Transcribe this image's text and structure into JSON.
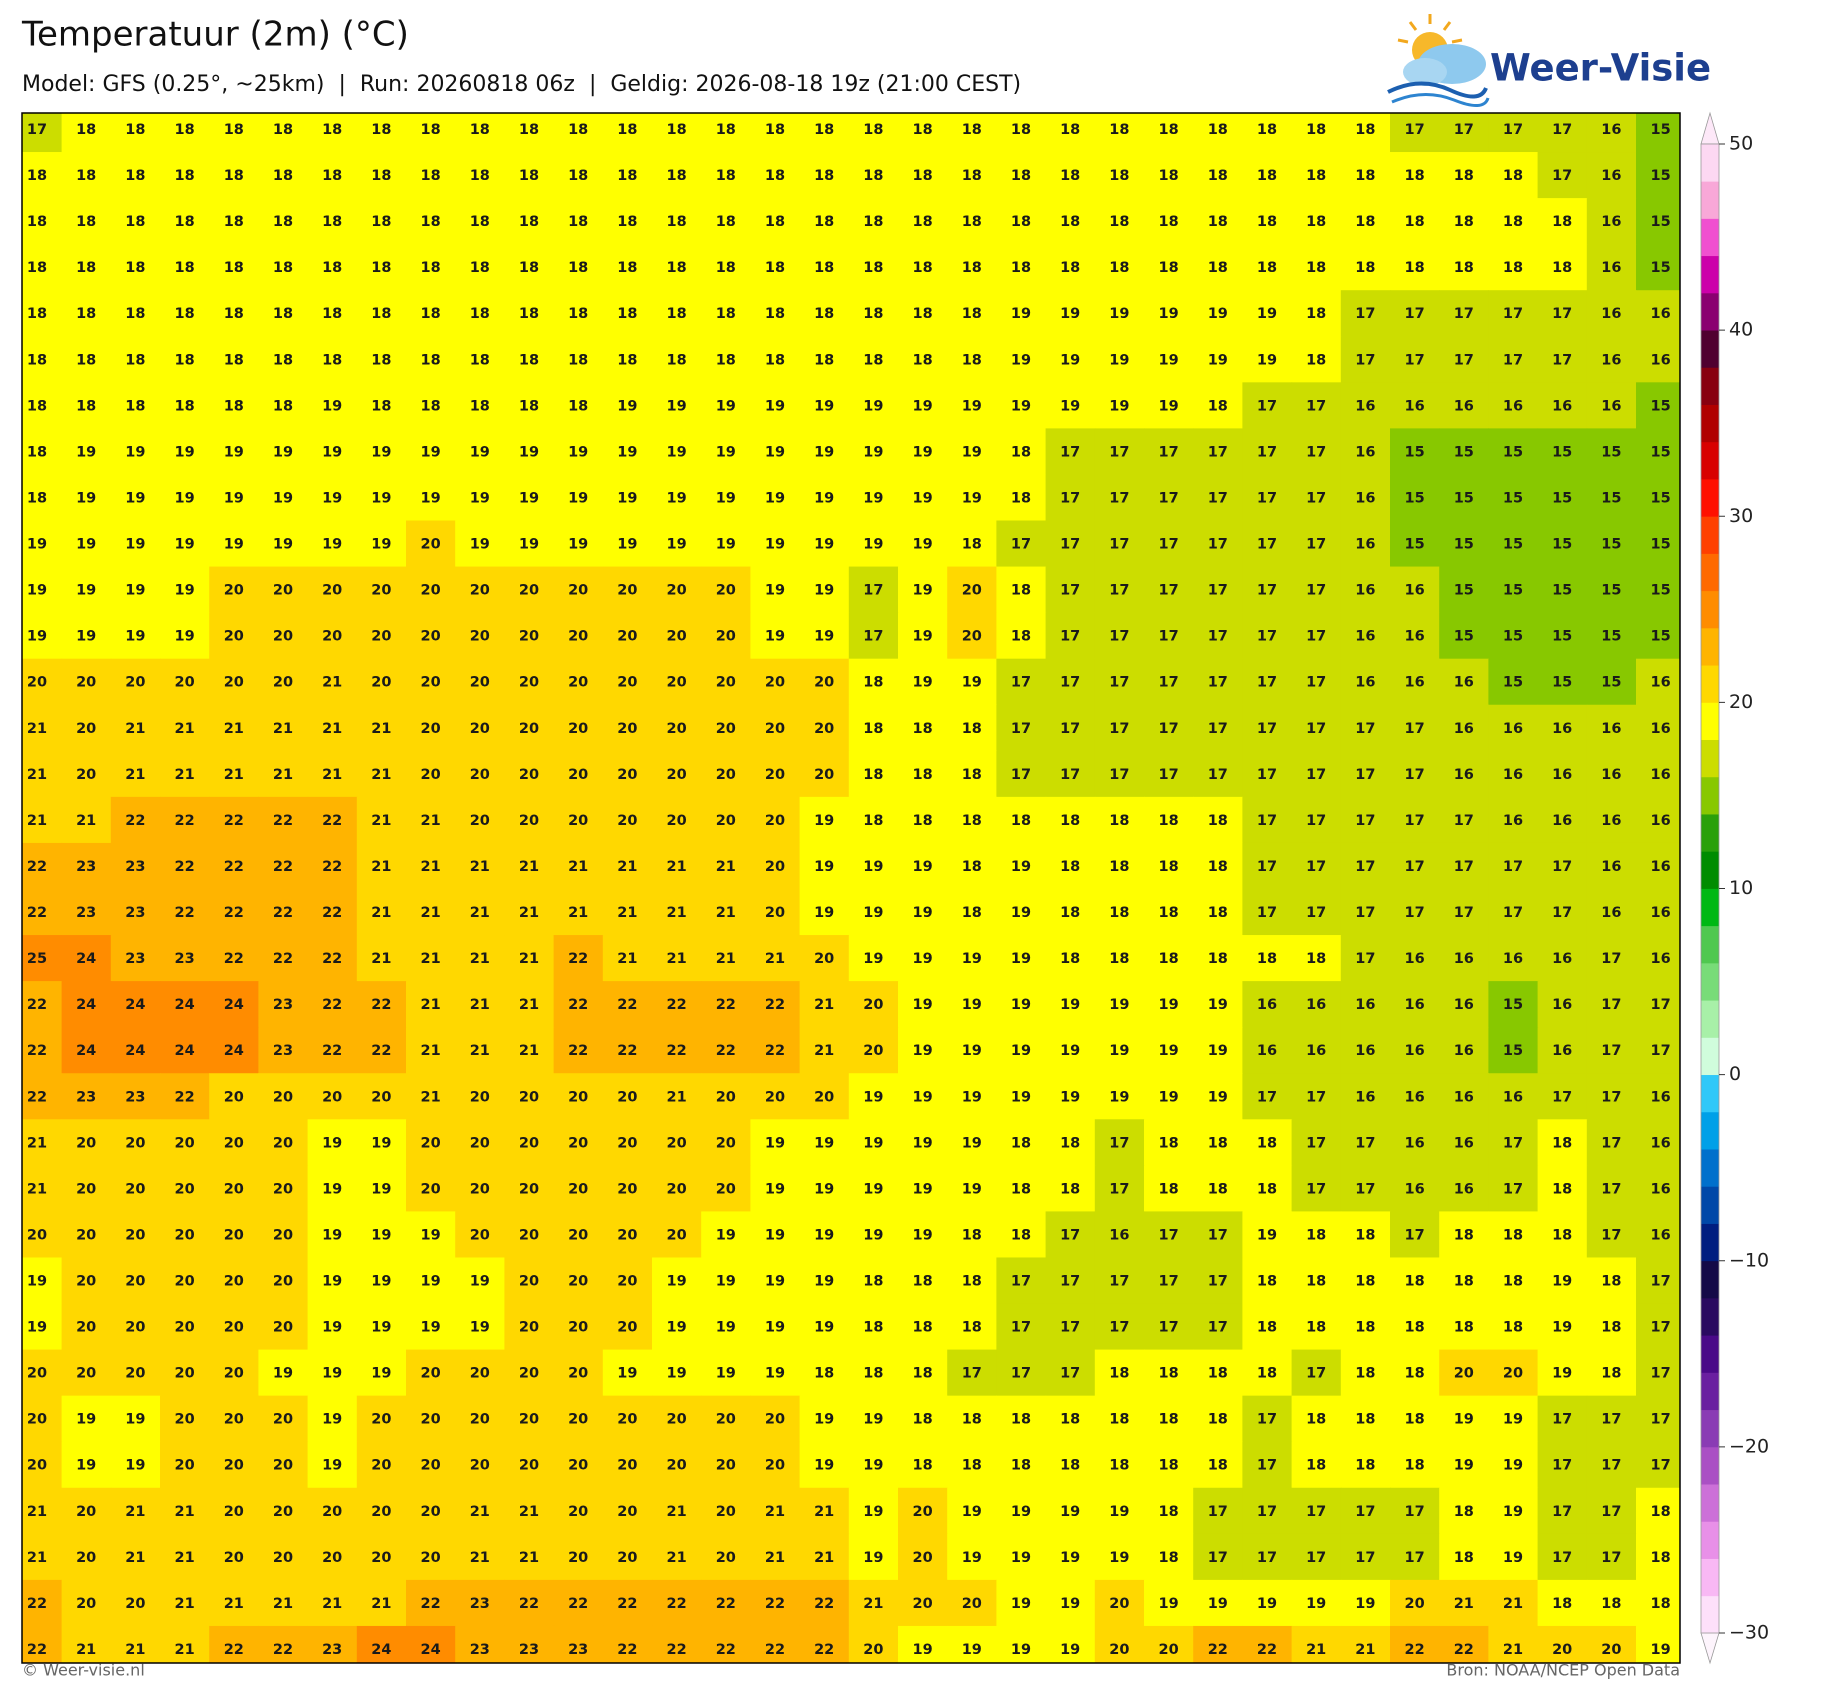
{
  "header": {
    "title": "Temperatuur (2m) (°C)",
    "subtitle": "Model: GFS (0.25°, ~25km)  |  Run: 20260818 06z  |  Geldig: 2026-08-18 19z (21:00 CEST)",
    "logo": "Weer-Visie"
  },
  "map": {
    "values": [
      [
        17,
        18,
        18,
        18,
        18,
        18,
        18,
        18,
        18,
        18,
        18,
        18,
        18,
        18,
        18,
        18,
        18,
        18,
        18,
        18,
        18,
        18,
        18,
        18,
        18,
        18,
        18,
        18,
        17,
        17,
        17,
        17,
        16,
        15
      ],
      [
        18,
        18,
        18,
        18,
        18,
        18,
        18,
        18,
        18,
        18,
        18,
        18,
        18,
        18,
        18,
        18,
        18,
        18,
        18,
        18,
        18,
        18,
        18,
        18,
        18,
        18,
        18,
        18,
        18,
        18,
        18,
        17,
        16,
        15
      ],
      [
        18,
        18,
        18,
        18,
        18,
        18,
        18,
        18,
        18,
        18,
        18,
        18,
        18,
        18,
        18,
        18,
        18,
        18,
        18,
        18,
        18,
        18,
        18,
        18,
        18,
        18,
        18,
        18,
        18,
        18,
        18,
        18,
        16,
        15
      ],
      [
        18,
        18,
        18,
        18,
        18,
        18,
        18,
        18,
        18,
        18,
        18,
        18,
        18,
        18,
        18,
        18,
        18,
        18,
        18,
        18,
        18,
        18,
        18,
        18,
        18,
        18,
        18,
        18,
        18,
        18,
        18,
        18,
        16,
        15
      ],
      [
        18,
        18,
        18,
        18,
        18,
        18,
        18,
        18,
        18,
        18,
        18,
        18,
        18,
        18,
        18,
        18,
        18,
        18,
        18,
        18,
        19,
        19,
        19,
        19,
        19,
        19,
        18,
        17,
        17,
        17,
        17,
        17,
        16,
        16
      ],
      [
        18,
        18,
        18,
        18,
        18,
        18,
        18,
        18,
        18,
        18,
        18,
        18,
        18,
        18,
        18,
        18,
        18,
        18,
        18,
        18,
        19,
        19,
        19,
        19,
        19,
        19,
        18,
        17,
        17,
        17,
        17,
        17,
        16,
        16
      ],
      [
        18,
        18,
        18,
        18,
        18,
        18,
        19,
        18,
        18,
        18,
        18,
        18,
        19,
        19,
        19,
        19,
        19,
        19,
        19,
        19,
        19,
        19,
        19,
        19,
        18,
        17,
        17,
        16,
        16,
        16,
        16,
        16,
        16,
        15
      ],
      [
        18,
        19,
        19,
        19,
        19,
        19,
        19,
        19,
        19,
        19,
        19,
        19,
        19,
        19,
        19,
        19,
        19,
        19,
        19,
        19,
        18,
        17,
        17,
        17,
        17,
        17,
        17,
        16,
        15,
        15,
        15,
        15,
        15,
        15
      ],
      [
        18,
        19,
        19,
        19,
        19,
        19,
        19,
        19,
        19,
        19,
        19,
        19,
        19,
        19,
        19,
        19,
        19,
        19,
        19,
        19,
        18,
        17,
        17,
        17,
        17,
        17,
        17,
        16,
        15,
        15,
        15,
        15,
        15,
        15
      ],
      [
        19,
        19,
        19,
        19,
        19,
        19,
        19,
        19,
        20,
        19,
        19,
        19,
        19,
        19,
        19,
        19,
        19,
        19,
        19,
        18,
        17,
        17,
        17,
        17,
        17,
        17,
        17,
        16,
        15,
        15,
        15,
        15,
        15,
        15
      ],
      [
        19,
        19,
        19,
        19,
        20,
        20,
        20,
        20,
        20,
        20,
        20,
        20,
        20,
        20,
        20,
        19,
        19,
        17,
        19,
        20,
        18,
        17,
        17,
        17,
        17,
        17,
        17,
        16,
        16,
        15,
        15,
        15,
        15,
        15
      ],
      [
        19,
        19,
        19,
        19,
        20,
        20,
        20,
        20,
        20,
        20,
        20,
        20,
        20,
        20,
        20,
        19,
        19,
        17,
        19,
        20,
        18,
        17,
        17,
        17,
        17,
        17,
        17,
        16,
        16,
        15,
        15,
        15,
        15,
        15
      ],
      [
        20,
        20,
        20,
        20,
        20,
        20,
        21,
        20,
        20,
        20,
        20,
        20,
        20,
        20,
        20,
        20,
        20,
        18,
        19,
        19,
        17,
        17,
        17,
        17,
        17,
        17,
        17,
        16,
        16,
        16,
        15,
        15,
        15,
        16
      ],
      [
        21,
        20,
        21,
        21,
        21,
        21,
        21,
        21,
        20,
        20,
        20,
        20,
        20,
        20,
        20,
        20,
        20,
        18,
        18,
        18,
        17,
        17,
        17,
        17,
        17,
        17,
        17,
        17,
        17,
        16,
        16,
        16,
        16,
        16
      ],
      [
        21,
        20,
        21,
        21,
        21,
        21,
        21,
        21,
        20,
        20,
        20,
        20,
        20,
        20,
        20,
        20,
        20,
        18,
        18,
        18,
        17,
        17,
        17,
        17,
        17,
        17,
        17,
        17,
        17,
        16,
        16,
        16,
        16,
        16
      ],
      [
        21,
        21,
        22,
        22,
        22,
        22,
        22,
        21,
        21,
        20,
        20,
        20,
        20,
        20,
        20,
        20,
        19,
        18,
        18,
        18,
        18,
        18,
        18,
        18,
        18,
        17,
        17,
        17,
        17,
        17,
        16,
        16,
        16,
        16
      ],
      [
        22,
        23,
        23,
        22,
        22,
        22,
        22,
        21,
        21,
        21,
        21,
        21,
        21,
        21,
        21,
        20,
        19,
        19,
        19,
        18,
        19,
        18,
        18,
        18,
        18,
        17,
        17,
        17,
        17,
        17,
        17,
        17,
        16,
        16
      ],
      [
        22,
        23,
        23,
        22,
        22,
        22,
        22,
        21,
        21,
        21,
        21,
        21,
        21,
        21,
        21,
        20,
        19,
        19,
        19,
        18,
        19,
        18,
        18,
        18,
        18,
        17,
        17,
        17,
        17,
        17,
        17,
        17,
        16,
        16
      ],
      [
        25,
        24,
        23,
        23,
        22,
        22,
        22,
        21,
        21,
        21,
        21,
        22,
        21,
        21,
        21,
        21,
        20,
        19,
        19,
        19,
        19,
        18,
        18,
        18,
        18,
        18,
        18,
        17,
        16,
        16,
        16,
        16,
        17,
        16
      ],
      [
        22,
        24,
        24,
        24,
        24,
        23,
        22,
        22,
        21,
        21,
        21,
        22,
        22,
        22,
        22,
        22,
        21,
        20,
        19,
        19,
        19,
        19,
        19,
        19,
        19,
        16,
        16,
        16,
        16,
        16,
        15,
        16,
        17,
        17
      ],
      [
        22,
        24,
        24,
        24,
        24,
        23,
        22,
        22,
        21,
        21,
        21,
        22,
        22,
        22,
        22,
        22,
        21,
        20,
        19,
        19,
        19,
        19,
        19,
        19,
        19,
        16,
        16,
        16,
        16,
        16,
        15,
        16,
        17,
        17
      ],
      [
        22,
        23,
        23,
        22,
        20,
        20,
        20,
        20,
        21,
        20,
        20,
        20,
        20,
        21,
        20,
        20,
        20,
        19,
        19,
        19,
        19,
        19,
        19,
        19,
        19,
        17,
        17,
        16,
        16,
        16,
        16,
        17,
        17,
        16
      ],
      [
        21,
        20,
        20,
        20,
        20,
        20,
        19,
        19,
        20,
        20,
        20,
        20,
        20,
        20,
        20,
        19,
        19,
        19,
        19,
        19,
        18,
        18,
        17,
        18,
        18,
        18,
        17,
        17,
        16,
        16,
        17,
        18,
        17,
        16
      ],
      [
        21,
        20,
        20,
        20,
        20,
        20,
        19,
        19,
        20,
        20,
        20,
        20,
        20,
        20,
        20,
        19,
        19,
        19,
        19,
        19,
        18,
        18,
        17,
        18,
        18,
        18,
        17,
        17,
        16,
        16,
        17,
        18,
        17,
        16
      ],
      [
        20,
        20,
        20,
        20,
        20,
        20,
        19,
        19,
        19,
        20,
        20,
        20,
        20,
        20,
        19,
        19,
        19,
        19,
        19,
        18,
        18,
        17,
        16,
        17,
        17,
        19,
        18,
        18,
        17,
        18,
        18,
        18,
        17,
        16
      ],
      [
        19,
        20,
        20,
        20,
        20,
        20,
        19,
        19,
        19,
        19,
        20,
        20,
        20,
        19,
        19,
        19,
        19,
        18,
        18,
        18,
        17,
        17,
        17,
        17,
        17,
        18,
        18,
        18,
        18,
        18,
        18,
        19,
        18,
        17
      ],
      [
        19,
        20,
        20,
        20,
        20,
        20,
        19,
        19,
        19,
        19,
        20,
        20,
        20,
        19,
        19,
        19,
        19,
        18,
        18,
        18,
        17,
        17,
        17,
        17,
        17,
        18,
        18,
        18,
        18,
        18,
        18,
        19,
        18,
        17
      ],
      [
        20,
        20,
        20,
        20,
        20,
        19,
        19,
        19,
        20,
        20,
        20,
        20,
        19,
        19,
        19,
        19,
        18,
        18,
        18,
        17,
        17,
        17,
        18,
        18,
        18,
        18,
        17,
        18,
        18,
        20,
        20,
        19,
        18,
        17
      ],
      [
        20,
        19,
        19,
        20,
        20,
        20,
        19,
        20,
        20,
        20,
        20,
        20,
        20,
        20,
        20,
        20,
        19,
        19,
        18,
        18,
        18,
        18,
        18,
        18,
        18,
        17,
        18,
        18,
        18,
        19,
        19,
        17,
        17,
        17
      ],
      [
        20,
        19,
        19,
        20,
        20,
        20,
        19,
        20,
        20,
        20,
        20,
        20,
        20,
        20,
        20,
        20,
        19,
        19,
        18,
        18,
        18,
        18,
        18,
        18,
        18,
        17,
        18,
        18,
        18,
        19,
        19,
        17,
        17,
        17
      ],
      [
        21,
        20,
        21,
        21,
        20,
        20,
        20,
        20,
        20,
        21,
        21,
        20,
        20,
        21,
        20,
        21,
        21,
        19,
        20,
        19,
        19,
        19,
        19,
        18,
        17,
        17,
        17,
        17,
        17,
        18,
        19,
        17,
        17,
        18
      ],
      [
        21,
        20,
        21,
        21,
        20,
        20,
        20,
        20,
        20,
        21,
        21,
        20,
        20,
        21,
        20,
        21,
        21,
        19,
        20,
        19,
        19,
        19,
        19,
        18,
        17,
        17,
        17,
        17,
        17,
        18,
        19,
        17,
        17,
        18
      ],
      [
        22,
        20,
        20,
        21,
        21,
        21,
        21,
        21,
        22,
        23,
        22,
        22,
        22,
        22,
        22,
        22,
        22,
        21,
        20,
        20,
        19,
        19,
        20,
        19,
        19,
        19,
        19,
        19,
        20,
        21,
        21,
        18,
        18,
        18
      ],
      [
        22,
        21,
        21,
        21,
        22,
        22,
        23,
        24,
        24,
        23,
        23,
        23,
        22,
        22,
        22,
        22,
        22,
        20,
        19,
        19,
        19,
        19,
        20,
        20,
        22,
        22,
        21,
        21,
        22,
        22,
        21,
        20,
        20,
        19
      ]
    ]
  },
  "colorbar": {
    "lim": [
      -30,
      50
    ],
    "ticks": [
      50,
      40,
      30,
      20,
      10,
      0,
      {
        "value": -10,
        "label": "−10"
      },
      {
        "value": -20,
        "label": "−20"
      },
      {
        "value": -30,
        "label": "−30"
      }
    ],
    "colors": [
      "#fde0fa",
      "#f8b8f4",
      "#e890e8",
      "#cc70d8",
      "#aa50c4",
      "#8a3cb4",
      "#6a20a0",
      "#4a0a88",
      "#2a0a60",
      "#140a48",
      "#001e80",
      "#0048a8",
      "#0070cc",
      "#00a0e8",
      "#30c8f8",
      "#d0fcdc",
      "#a8f0a8",
      "#78dc78",
      "#50c850",
      "#00b814",
      "#008c00",
      "#2aa00a",
      "#88c800",
      "#ccdd00",
      "#ffff00",
      "#ffd800",
      "#ffb400",
      "#ff8c00",
      "#ff6a00",
      "#ff4000",
      "#ff1000",
      "#d80000",
      "#b00000",
      "#880010",
      "#500030",
      "#8a0070",
      "#cc00aa",
      "#f050d0",
      "#f8a8d8",
      "#fcd8f2"
    ]
  },
  "footer": {
    "credit": "© Weer-visie.nl",
    "source": "Bron: NOAA/NCEP Open Data"
  }
}
